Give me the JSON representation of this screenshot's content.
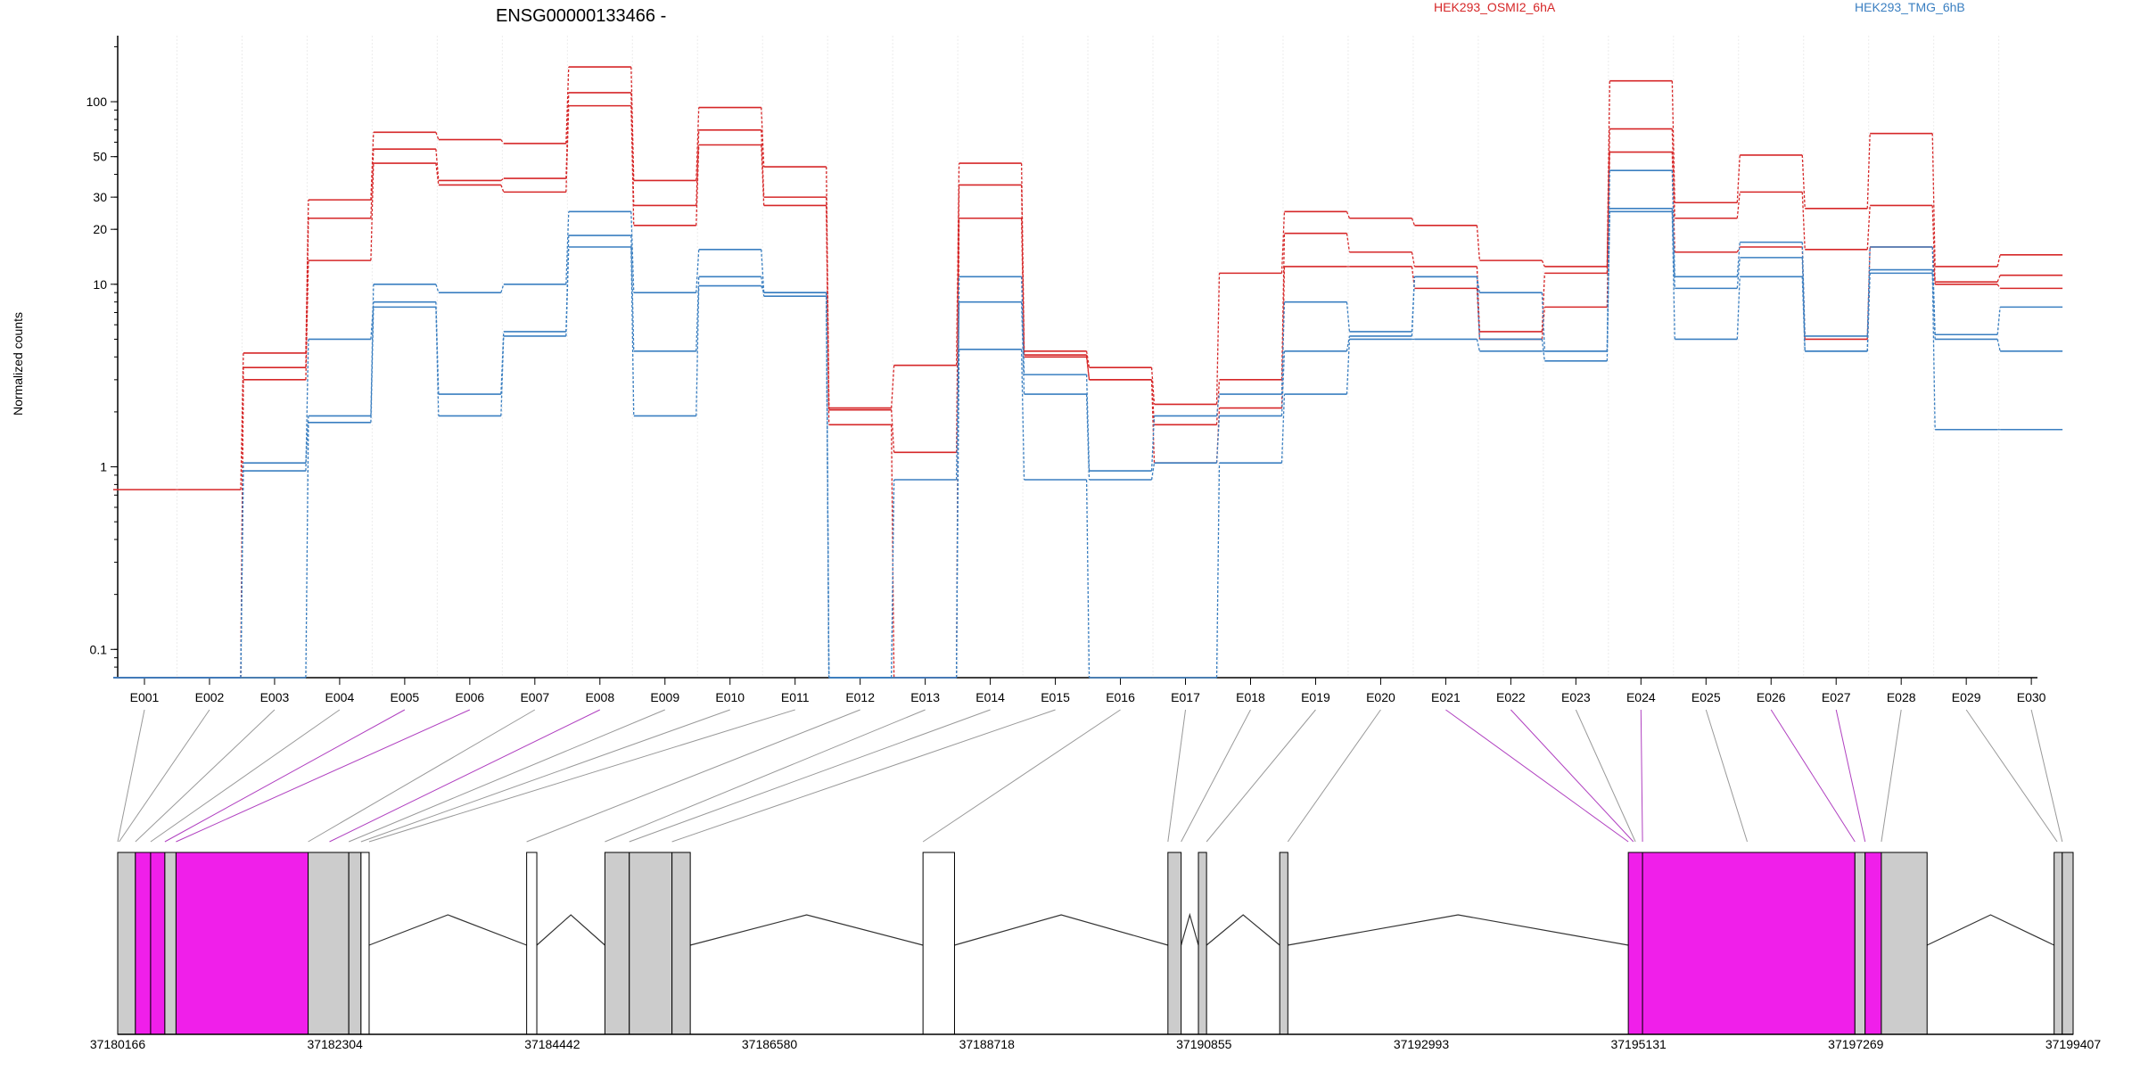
{
  "chart_data": {
    "type": "line",
    "title": "ENSG00000133466 -",
    "ylabel": "Normalized counts",
    "y_scale": "log",
    "ylim": [
      0.07,
      230
    ],
    "y_ticks": [
      {
        "value": 0.1,
        "label": "0.1"
      },
      {
        "value": 1,
        "label": "1"
      },
      {
        "value": 10,
        "label": "10"
      },
      {
        "value": 20,
        "label": "20"
      },
      {
        "value": 30,
        "label": "30"
      },
      {
        "value": 50,
        "label": "50"
      },
      {
        "value": 100,
        "label": "100"
      }
    ],
    "legend": [
      {
        "name": "HEK293_OSMI2_6hA",
        "color": "#d62728"
      },
      {
        "name": "HEK293_TMG_6hB",
        "color": "#3a7fc1"
      }
    ],
    "categories": [
      "E001",
      "E002",
      "E003",
      "E004",
      "E005",
      "E006",
      "E007",
      "E008",
      "E009",
      "E010",
      "E011",
      "E012",
      "E013",
      "E014",
      "E015",
      "E016",
      "E017",
      "E018",
      "E019",
      "E020",
      "E021",
      "E022",
      "E023",
      "E024",
      "E025",
      "E026",
      "E027",
      "E028",
      "E029",
      "E030"
    ],
    "series": [
      {
        "group": 0,
        "values": [
          0.75,
          0.75,
          4.2,
          29,
          68,
          62,
          59,
          155,
          37,
          93,
          44,
          2.1,
          3.6,
          46,
          4.3,
          3.5,
          2.2,
          11.5,
          25,
          23,
          21,
          13.5,
          12.5,
          130,
          28,
          51,
          26,
          67,
          12.5,
          14.5
        ]
      },
      {
        "group": 0,
        "values": [
          0.07,
          0.07,
          3.5,
          23,
          55,
          37,
          38,
          112,
          27,
          70,
          30,
          2.05,
          1.2,
          35,
          4.1,
          3,
          1.7,
          3,
          19,
          15,
          12.5,
          5.5,
          11.5,
          71,
          23,
          32,
          15.5,
          27,
          10.3,
          11.2
        ]
      },
      {
        "group": 0,
        "values": [
          0.07,
          0.07,
          3,
          13.5,
          46,
          35,
          32,
          95,
          21,
          58,
          27,
          1.7,
          0.07,
          23,
          4,
          3,
          1.05,
          2.1,
          12.5,
          12.5,
          9.5,
          5,
          7.5,
          53,
          15,
          16,
          5,
          16,
          10,
          9.5
        ]
      },
      {
        "group": 1,
        "values": [
          0.07,
          0.07,
          1.05,
          1.9,
          10,
          9,
          10,
          25,
          9,
          15.5,
          9,
          0.07,
          0.07,
          11,
          3.2,
          0.95,
          1.9,
          2.5,
          8,
          5.5,
          11,
          9,
          4.3,
          42,
          11,
          17,
          5.2,
          16,
          5.3,
          7.5
        ]
      },
      {
        "group": 1,
        "values": [
          0.07,
          0.07,
          0.95,
          5,
          8,
          2.5,
          5.5,
          18.5,
          4.3,
          11,
          8.6,
          0.07,
          0.85,
          8,
          2.5,
          0.85,
          1.05,
          1.9,
          4.3,
          5.2,
          11,
          5,
          3.8,
          26,
          9.5,
          14,
          4.3,
          12,
          5,
          4.3
        ]
      },
      {
        "group": 1,
        "values": [
          0.07,
          0.07,
          0.07,
          1.75,
          7.5,
          1.9,
          5.2,
          16,
          1.9,
          9.8,
          9,
          0.07,
          0.07,
          4.4,
          0.85,
          0.07,
          0.07,
          1.05,
          2.5,
          5,
          5,
          4.3,
          4.3,
          25,
          5,
          11,
          4.3,
          11.5,
          1.6,
          1.6
        ]
      }
    ],
    "gene_coordinate_axis": {
      "range": [
        37180166,
        37199407
      ],
      "tick_labels": [
        "37180166",
        "37182304",
        "37184442",
        "37186580",
        "37188718",
        "37190855",
        "37192993",
        "37195131",
        "37197269",
        "37199407"
      ]
    },
    "exon_model": {
      "boxes": [
        {
          "start": 37180166,
          "end": 37180340,
          "style": "grey"
        },
        {
          "start": 37180340,
          "end": 37180490,
          "style": "magenta"
        },
        {
          "start": 37180490,
          "end": 37180630,
          "style": "magenta"
        },
        {
          "start": 37180630,
          "end": 37180740,
          "style": "grey"
        },
        {
          "start": 37180740,
          "end": 37182040,
          "style": "magenta"
        },
        {
          "start": 37182040,
          "end": 37182440,
          "style": "grey"
        },
        {
          "start": 37182440,
          "end": 37182560,
          "style": "grey"
        },
        {
          "start": 37182560,
          "end": 37182640,
          "style": "white"
        },
        {
          "start": 37184190,
          "end": 37184290,
          "style": "white"
        },
        {
          "start": 37184960,
          "end": 37185200,
          "style": "grey"
        },
        {
          "start": 37185200,
          "end": 37185620,
          "style": "grey"
        },
        {
          "start": 37185620,
          "end": 37185800,
          "style": "grey"
        },
        {
          "start": 37188090,
          "end": 37188400,
          "style": "white"
        },
        {
          "start": 37190500,
          "end": 37190630,
          "style": "grey"
        },
        {
          "start": 37190800,
          "end": 37190880,
          "style": "grey"
        },
        {
          "start": 37191600,
          "end": 37191680,
          "style": "grey"
        },
        {
          "start": 37195030,
          "end": 37195170,
          "style": "magenta"
        },
        {
          "start": 37195170,
          "end": 37197260,
          "style": "magenta"
        },
        {
          "start": 37197260,
          "end": 37197360,
          "style": "grey"
        },
        {
          "start": 37197360,
          "end": 37197520,
          "style": "magenta"
        },
        {
          "start": 37197520,
          "end": 37197970,
          "style": "grey"
        },
        {
          "start": 37199220,
          "end": 37199300,
          "style": "grey"
        },
        {
          "start": 37199300,
          "end": 37199407,
          "style": "grey"
        }
      ],
      "mapping_anchors": [
        37180166,
        37180180,
        37180340,
        37180490,
        37180630,
        37180740,
        37182040,
        37182250,
        37182440,
        37182560,
        37182640,
        37184190,
        37184960,
        37185200,
        37185620,
        37188090,
        37190500,
        37190630,
        37190880,
        37191680,
        37195030,
        37195080,
        37195100,
        37195170,
        37196200,
        37197260,
        37197360,
        37197520,
        37199250,
        37199300
      ],
      "highlighted_links": [
        4,
        5,
        7,
        20,
        21,
        23,
        25,
        26
      ]
    }
  }
}
